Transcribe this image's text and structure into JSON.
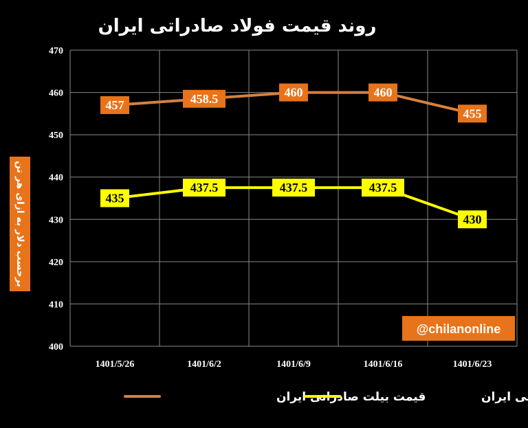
{
  "chart_data": {
    "type": "line",
    "title": "روند قیمت فولاد صادراتی ایران",
    "ylabel": "برحسب دلار به ازای هر تن",
    "categories": [
      "1401/5/26",
      "1401/6/2",
      "1401/6/9",
      "1401/6/16",
      "1401/6/23"
    ],
    "yticks": [
      "400",
      "410",
      "420",
      "430",
      "440",
      "450",
      "460",
      "470"
    ],
    "ylim": [
      400,
      470
    ],
    "grid": true,
    "legend_position": "bottom",
    "series": [
      {
        "name": "قیمت بیلت صادراتی ایران",
        "values": [
          457,
          458.5,
          460,
          460,
          455
        ],
        "labels": [
          "457",
          "458.5",
          "460",
          "460",
          "455"
        ],
        "color": "#D4813F",
        "label_bg": "#E8731A",
        "label_fg": "#FFFFFF"
      },
      {
        "name": "قیمت اسلب صادراتی ایران",
        "values": [
          435,
          437.5,
          437.5,
          437.5,
          430
        ],
        "labels": [
          "435",
          "437.5",
          "437.5",
          "437.5",
          "430"
        ],
        "color": "#FFFF00",
        "label_bg": "#FFFF00",
        "label_fg": "#000000"
      }
    ],
    "watermark": "@chilanonline",
    "watermark_bg": "#E8731A",
    "ylabel_bg": "#E8731A"
  }
}
